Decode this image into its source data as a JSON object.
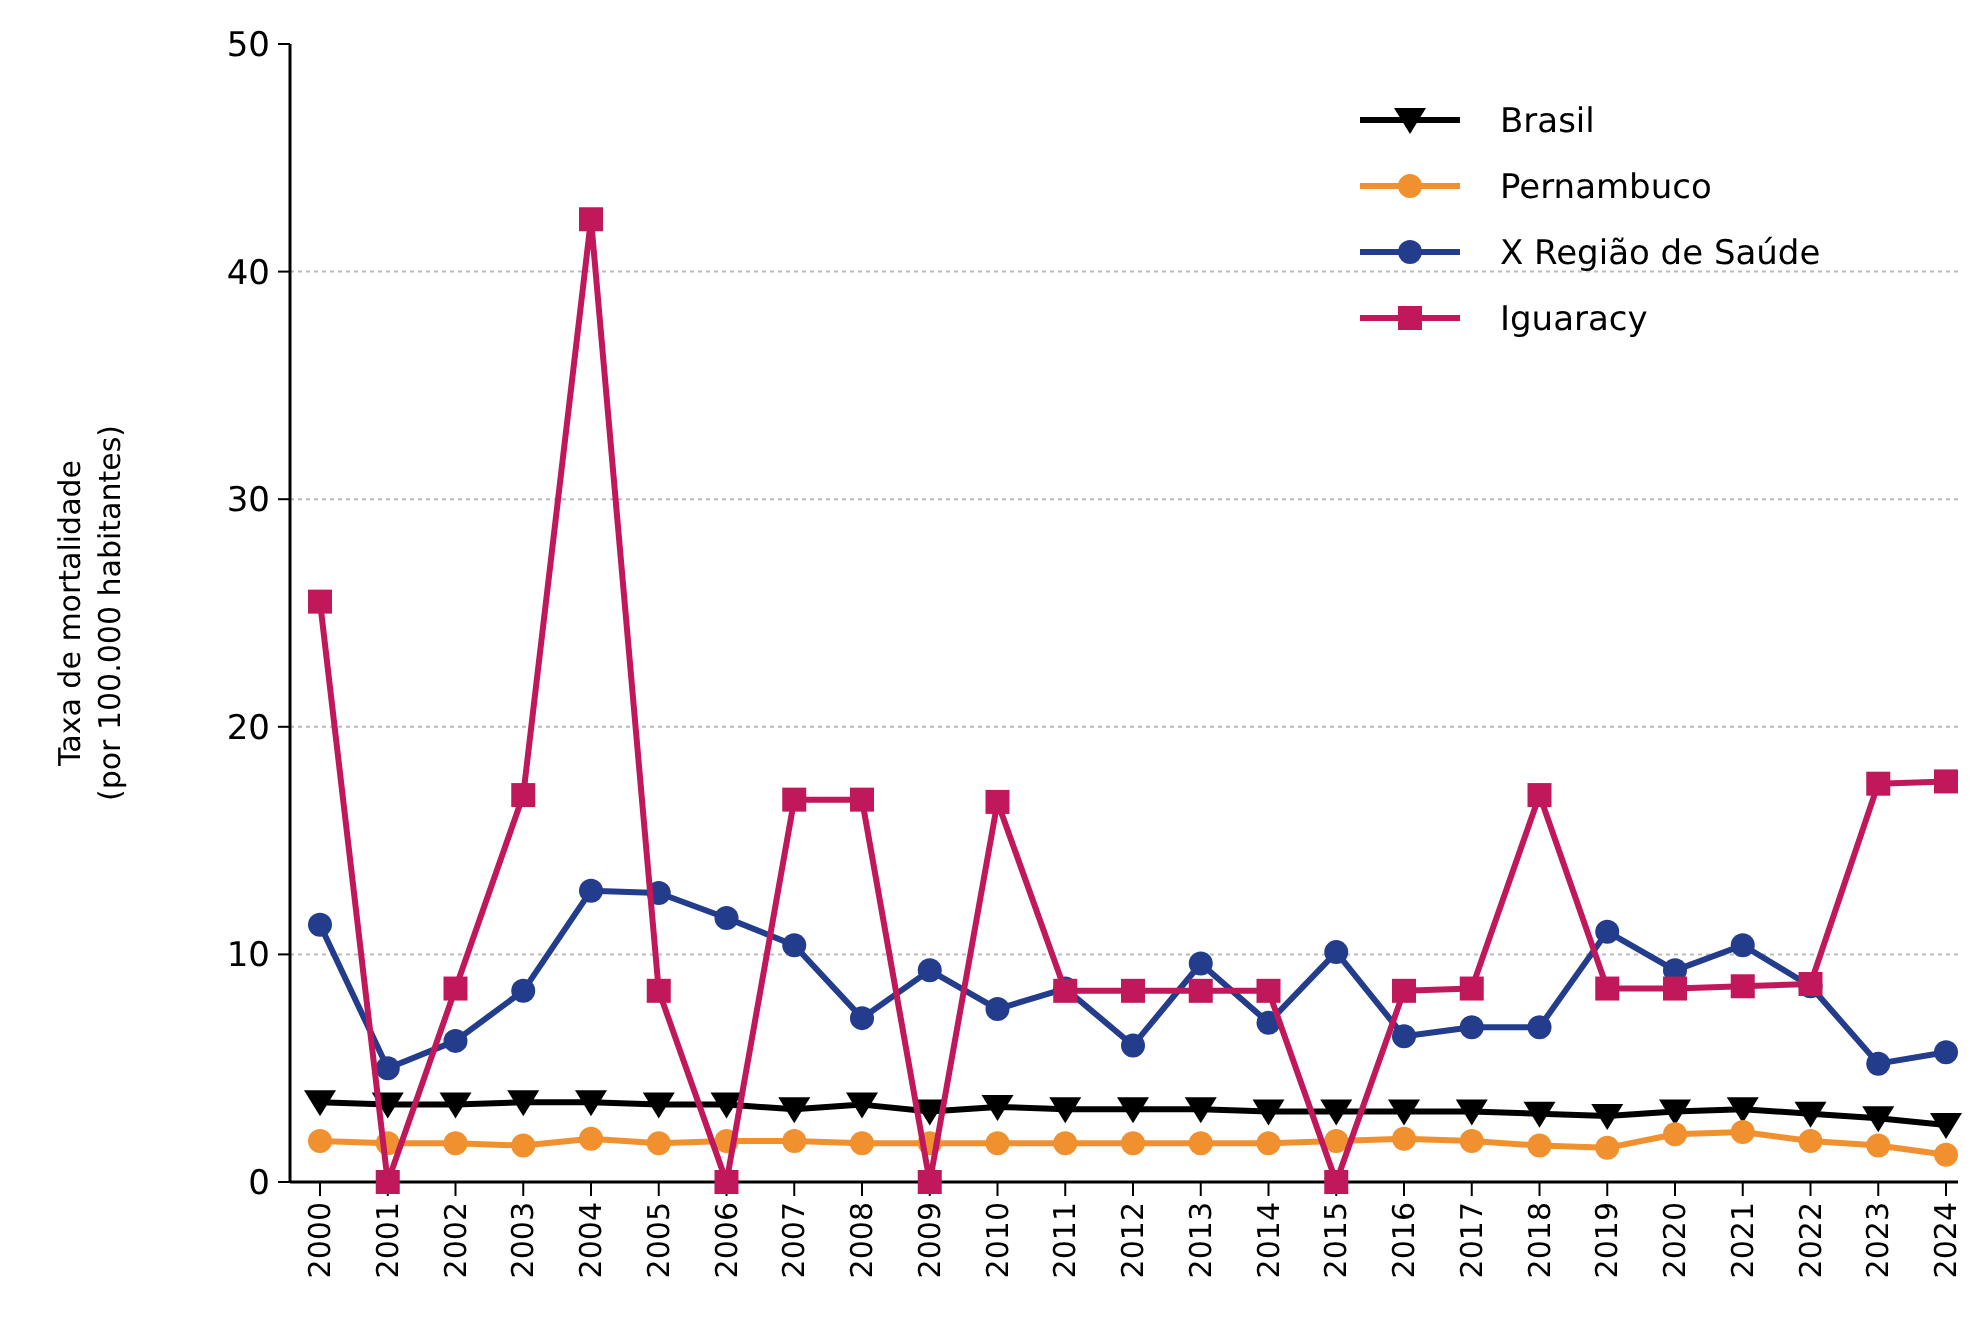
{
  "chart_data": {
    "type": "line",
    "ylabel": "Taxa de mortalidade\n(por 100.000 habitantes)",
    "categories": [
      "2000",
      "2001",
      "2002",
      "2003",
      "2004",
      "2005",
      "2006",
      "2007",
      "2008",
      "2009",
      "2010",
      "2011",
      "2012",
      "2013",
      "2014",
      "2015",
      "2016",
      "2017",
      "2018",
      "2019",
      "2020",
      "2021",
      "2022",
      "2023",
      "2024"
    ],
    "ylim": [
      0,
      50
    ],
    "yticks": [
      0,
      10,
      20,
      30,
      40,
      50
    ],
    "grid": "y",
    "legend": "top right",
    "series": [
      {
        "name": "Brasil",
        "color": "#000000",
        "marker": "triangle",
        "values": [
          3.5,
          3.4,
          3.4,
          3.5,
          3.5,
          3.4,
          3.4,
          3.2,
          3.4,
          3.1,
          3.3,
          3.2,
          3.2,
          3.2,
          3.1,
          3.1,
          3.1,
          3.1,
          3.0,
          2.9,
          3.1,
          3.2,
          3.0,
          2.8,
          2.5
        ]
      },
      {
        "name": "Pernambuco",
        "color": "#f0902e",
        "marker": "circle",
        "values": [
          1.8,
          1.7,
          1.7,
          1.6,
          1.9,
          1.7,
          1.8,
          1.8,
          1.7,
          1.7,
          1.7,
          1.7,
          1.7,
          1.7,
          1.7,
          1.8,
          1.9,
          1.8,
          1.6,
          1.5,
          2.1,
          2.2,
          1.8,
          1.6,
          1.2
        ]
      },
      {
        "name": "X Região de Saúde",
        "color": "#233d8c",
        "marker": "circle",
        "values": [
          11.3,
          5.0,
          6.2,
          8.4,
          12.8,
          12.7,
          11.6,
          10.4,
          7.2,
          9.3,
          7.6,
          8.5,
          6.0,
          9.6,
          7.0,
          10.1,
          6.4,
          6.8,
          6.8,
          11.0,
          9.3,
          10.4,
          8.6,
          5.2,
          5.7
        ]
      },
      {
        "name": "Iguaracy",
        "color": "#c0185a",
        "marker": "square",
        "values": [
          25.5,
          0,
          8.5,
          17,
          42.3,
          8.4,
          0,
          16.8,
          16.8,
          0,
          16.7,
          8.4,
          8.4,
          8.4,
          8.4,
          0,
          8.4,
          8.5,
          17,
          8.5,
          8.5,
          8.6,
          8.7,
          17.5,
          17.6
        ]
      }
    ]
  }
}
